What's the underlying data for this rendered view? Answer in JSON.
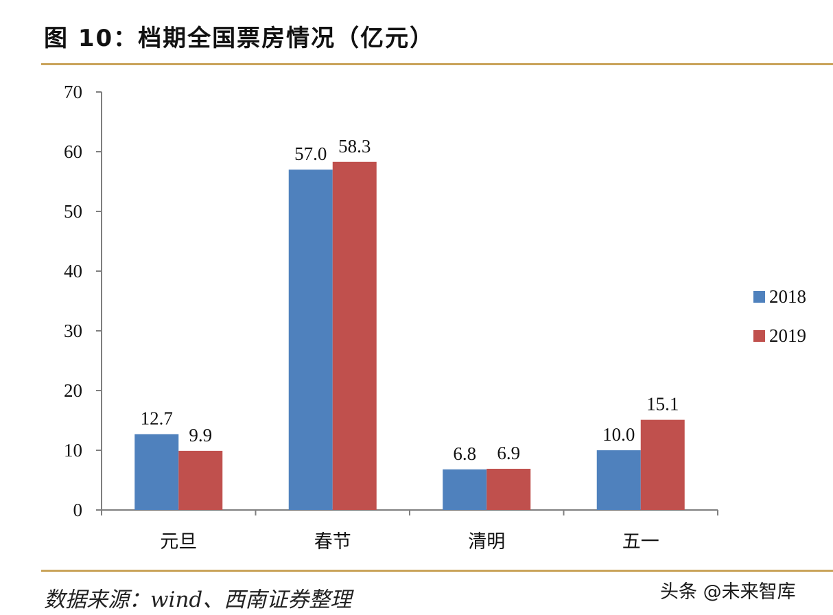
{
  "header": {
    "title": "图 10：档期全国票房情况（亿元）"
  },
  "footer": {
    "source": "数据来源：wind、西南证券整理",
    "watermark": "头条 @未来智库"
  },
  "colors": {
    "rule": "#C9A35A",
    "series_2018": "#4F81BD",
    "series_2019": "#C0504D",
    "axis": "#7F7F7F"
  },
  "chart_data": {
    "type": "bar",
    "title": "",
    "xlabel": "",
    "ylabel": "",
    "categories": [
      "元旦",
      "春节",
      "清明",
      "五一"
    ],
    "series": [
      {
        "name": "2018",
        "values": [
          12.7,
          57.0,
          6.8,
          10.0
        ],
        "labels": [
          "12.7",
          "57.0",
          "6.8",
          "10.0"
        ]
      },
      {
        "name": "2019",
        "values": [
          9.9,
          58.3,
          6.9,
          15.1
        ],
        "labels": [
          "9.9",
          "58.3",
          "6.9",
          "15.1"
        ]
      }
    ],
    "ylim": [
      0,
      70
    ],
    "yticks": [
      "0",
      "10",
      "20",
      "30",
      "40",
      "50",
      "60",
      "70"
    ],
    "legend_position": "right",
    "grid": false
  }
}
